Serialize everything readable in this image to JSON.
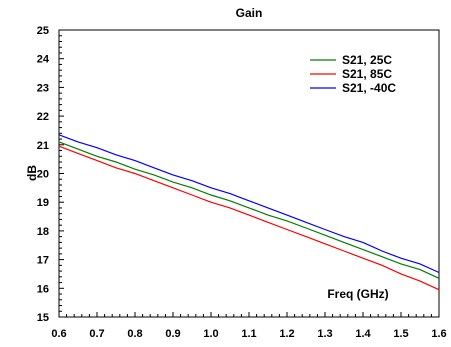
{
  "chart_data": {
    "type": "line",
    "title": "Gain",
    "xlabel": "Freq (GHz)",
    "ylabel": "dB",
    "xlim": [
      0.6,
      1.6
    ],
    "ylim": [
      15,
      25
    ],
    "xticks": [
      0.6,
      0.7,
      0.8,
      0.9,
      1.0,
      1.1,
      1.2,
      1.3,
      1.4,
      1.5,
      1.6
    ],
    "yticks": [
      15,
      16,
      17,
      18,
      19,
      20,
      21,
      22,
      23,
      24,
      25
    ],
    "xtick_labels": [
      "0.6",
      "0.7",
      "0.8",
      "0.9",
      "1.0",
      "1.1",
      "1.2",
      "1.3",
      "1.4",
      "1.5",
      "1.6"
    ],
    "ytick_labels": [
      "15",
      "16",
      "17",
      "18",
      "19",
      "20",
      "21",
      "22",
      "23",
      "24",
      "25"
    ],
    "grid": false,
    "legend_position": "top-right",
    "x": [
      0.6,
      0.65,
      0.7,
      0.75,
      0.8,
      0.85,
      0.9,
      0.95,
      1.0,
      1.05,
      1.1,
      1.15,
      1.2,
      1.25,
      1.3,
      1.35,
      1.4,
      1.45,
      1.5,
      1.55,
      1.6
    ],
    "series": [
      {
        "name": "S21, 25C",
        "color": "#008000",
        "values": [
          21.1,
          20.85,
          20.6,
          20.4,
          20.15,
          19.95,
          19.7,
          19.5,
          19.25,
          19.05,
          18.8,
          18.55,
          18.35,
          18.1,
          17.85,
          17.6,
          17.35,
          17.1,
          16.85,
          16.65,
          16.35
        ]
      },
      {
        "name": "S21, 85C",
        "color": "#FF0000",
        "values": [
          20.95,
          20.7,
          20.45,
          20.2,
          20.0,
          19.75,
          19.5,
          19.25,
          19.0,
          18.8,
          18.55,
          18.3,
          18.05,
          17.8,
          17.55,
          17.3,
          17.05,
          16.8,
          16.5,
          16.25,
          15.95
        ]
      },
      {
        "name": "S21, -40C",
        "color": "#0000FF",
        "values": [
          21.35,
          21.1,
          20.9,
          20.65,
          20.45,
          20.2,
          19.95,
          19.75,
          19.5,
          19.3,
          19.05,
          18.8,
          18.55,
          18.3,
          18.05,
          17.8,
          17.6,
          17.3,
          17.05,
          16.85,
          16.55
        ]
      }
    ]
  }
}
